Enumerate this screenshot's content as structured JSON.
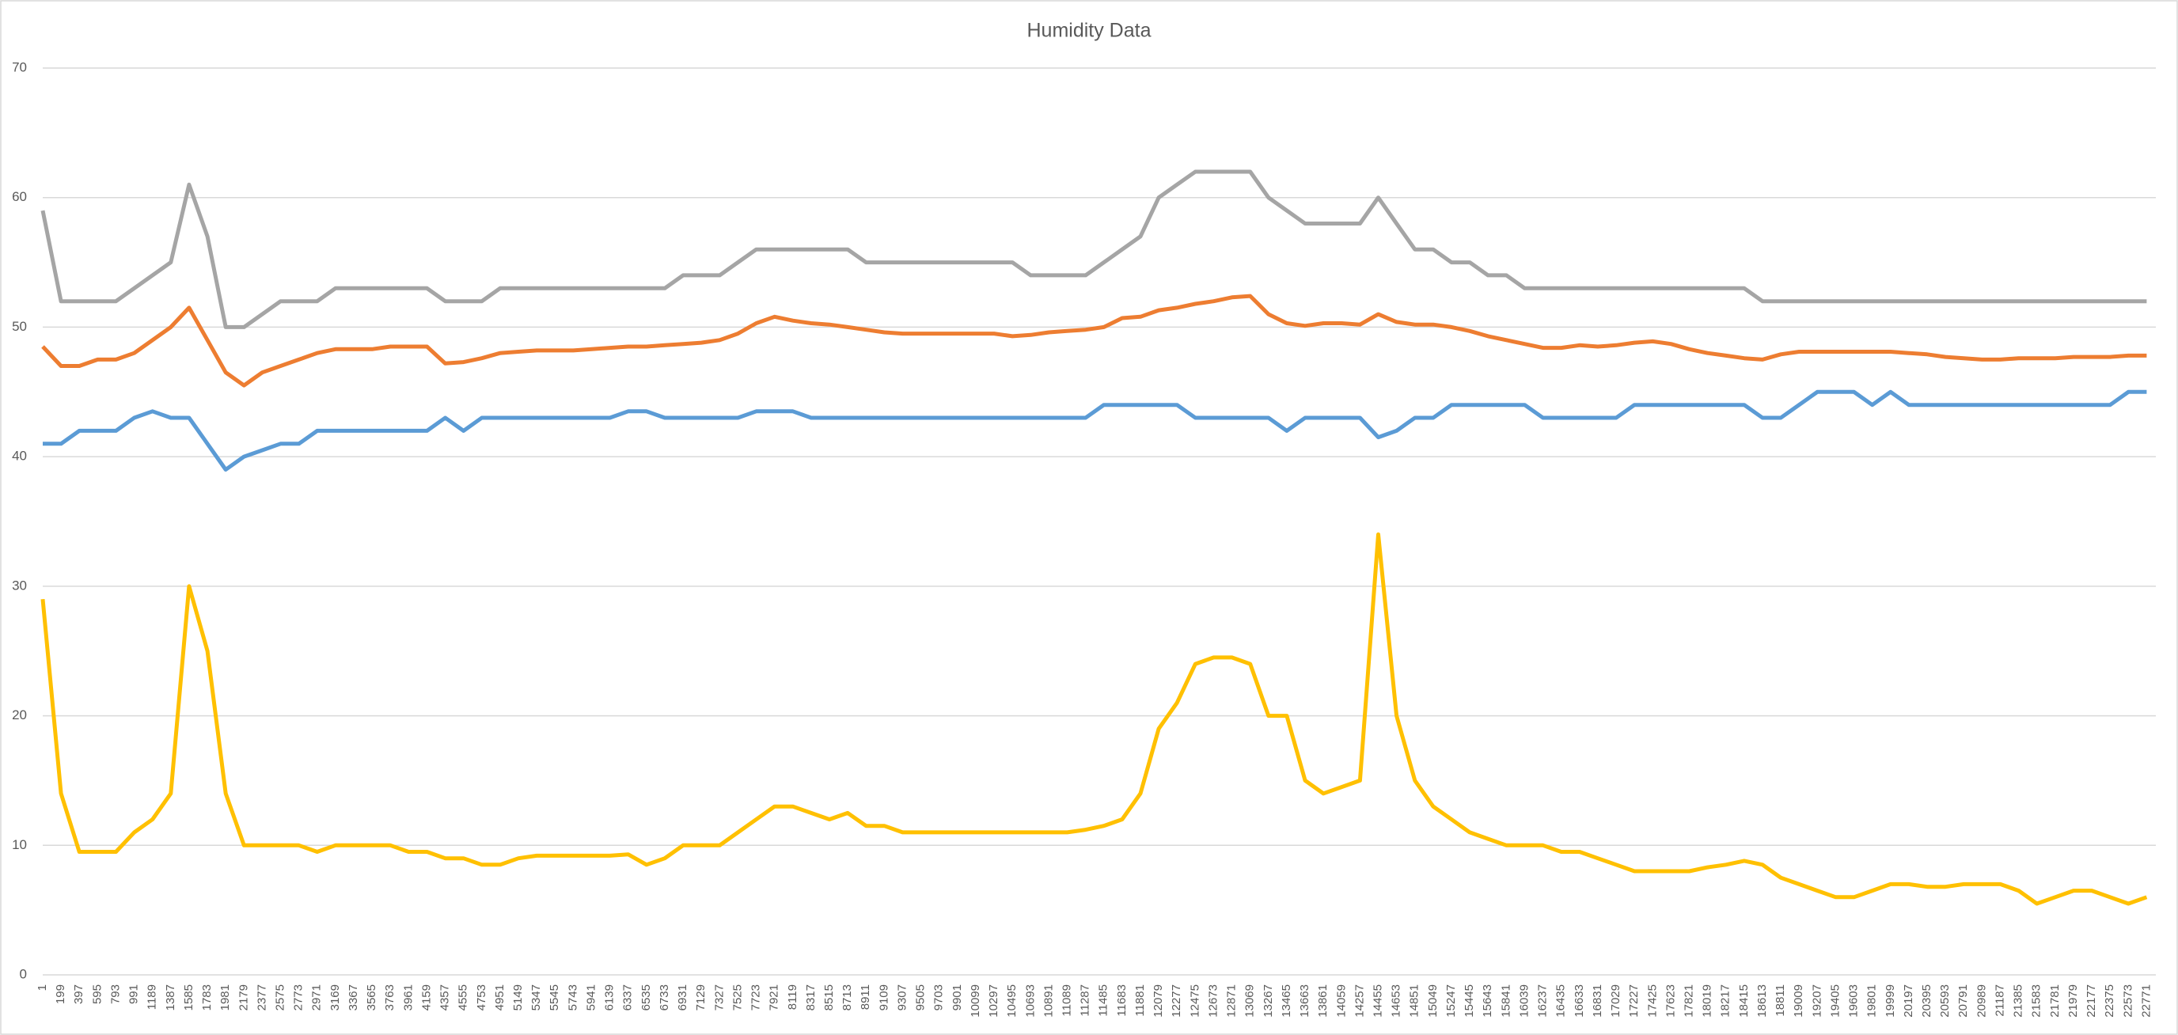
{
  "chart_data": {
    "type": "line",
    "title": "Humidity Data",
    "categories": [
      1,
      199,
      397,
      595,
      793,
      991,
      1189,
      1387,
      1585,
      1783,
      1981,
      2179,
      2377,
      2575,
      2773,
      2971,
      3169,
      3367,
      3565,
      3763,
      3961,
      4159,
      4357,
      4555,
      4753,
      4951,
      5149,
      5347,
      5545,
      5743,
      5941,
      6139,
      6337,
      6535,
      6733,
      6931,
      7129,
      7327,
      7525,
      7723,
      7921,
      8119,
      8317,
      8515,
      8713,
      8911,
      9109,
      9307,
      9505,
      9703,
      9901,
      10099,
      10297,
      10495,
      10693,
      10891,
      11089,
      11287,
      11485,
      11683,
      11881,
      12079,
      12277,
      12475,
      12673,
      12871,
      13069,
      13267,
      13465,
      13663,
      13861,
      14059,
      14257,
      14455,
      14653,
      14851,
      15049,
      15247,
      15445,
      15643,
      15841,
      16039,
      16237,
      16435,
      16633,
      16831,
      17029,
      17227,
      17425,
      17623,
      17821,
      18019,
      18217,
      18415,
      18613,
      18811,
      19009,
      19207,
      19405,
      19603,
      19801,
      19999,
      20197,
      20395,
      20593,
      20791,
      20989,
      21187,
      21385,
      21583,
      21781,
      21979,
      22177,
      22375,
      22573,
      22771
    ],
    "series": [
      {
        "color": "#a5a5a5",
        "values": [
          59,
          52,
          52,
          52,
          52,
          53,
          54,
          55,
          61,
          57,
          50,
          50,
          51,
          52,
          52,
          52,
          53,
          53,
          53,
          53,
          53,
          53,
          52,
          52,
          52,
          53,
          53,
          53,
          53,
          53,
          53,
          53,
          53,
          53,
          53,
          54,
          54,
          54,
          55,
          56,
          56,
          56,
          56,
          56,
          56,
          55,
          55,
          55,
          55,
          55,
          55,
          55,
          55,
          55,
          54,
          54,
          54,
          54,
          55,
          56,
          57,
          60,
          61,
          62,
          62,
          62,
          62,
          60,
          59,
          58,
          58,
          58,
          58,
          60,
          58,
          56,
          56,
          55,
          55,
          54,
          54,
          53,
          53,
          53,
          53,
          53,
          53,
          53,
          53,
          53,
          53,
          53,
          53,
          53,
          52,
          52,
          52,
          52,
          52,
          52,
          52,
          52,
          52,
          52,
          52,
          52,
          52,
          52,
          52,
          52,
          52,
          52,
          52,
          52,
          52,
          52
        ]
      },
      {
        "color": "#ed7d31",
        "values": [
          48.5,
          47,
          47,
          47.5,
          47.5,
          48,
          49,
          50,
          51.5,
          49,
          46.5,
          45.5,
          46.5,
          47,
          47.5,
          48,
          48.3,
          48.3,
          48.3,
          48.5,
          48.5,
          48.5,
          47.2,
          47.3,
          47.6,
          48,
          48.1,
          48.2,
          48.2,
          48.2,
          48.3,
          48.4,
          48.5,
          48.5,
          48.6,
          48.7,
          48.8,
          49,
          49.5,
          50.3,
          50.8,
          50.5,
          50.3,
          50.2,
          50,
          49.8,
          49.6,
          49.5,
          49.5,
          49.5,
          49.5,
          49.5,
          49.5,
          49.3,
          49.4,
          49.6,
          49.7,
          49.8,
          50,
          50.7,
          50.8,
          51.3,
          51.5,
          51.8,
          52,
          52.3,
          52.4,
          51,
          50.3,
          50.1,
          50.3,
          50.3,
          50.2,
          51,
          50.4,
          50.2,
          50.2,
          50,
          49.7,
          49.3,
          49,
          48.7,
          48.4,
          48.4,
          48.6,
          48.5,
          48.6,
          48.8,
          48.9,
          48.7,
          48.3,
          48,
          47.8,
          47.6,
          47.5,
          47.9,
          48.1,
          48.1,
          48.1,
          48.1,
          48.1,
          48.1,
          48,
          47.9,
          47.7,
          47.6,
          47.5,
          47.5,
          47.6,
          47.6,
          47.6,
          47.7,
          47.7,
          47.7,
          47.8,
          47.8
        ]
      },
      {
        "color": "#5b9bd5",
        "values": [
          41,
          41,
          42,
          42,
          42,
          43,
          43.5,
          43,
          43,
          41,
          39,
          40,
          40.5,
          41,
          41,
          42,
          42,
          42,
          42,
          42,
          42,
          42,
          43,
          42,
          43,
          43,
          43,
          43,
          43,
          43,
          43,
          43,
          43.5,
          43.5,
          43,
          43,
          43,
          43,
          43,
          43.5,
          43.5,
          43.5,
          43,
          43,
          43,
          43,
          43,
          43,
          43,
          43,
          43,
          43,
          43,
          43,
          43,
          43,
          43,
          43,
          44,
          44,
          44,
          44,
          44,
          43,
          43,
          43,
          43,
          43,
          42,
          43,
          43,
          43,
          43,
          41.5,
          42,
          43,
          43,
          44,
          44,
          44,
          44,
          44,
          43,
          43,
          43,
          43,
          43,
          44,
          44,
          44,
          44,
          44,
          44,
          44,
          43,
          43,
          44,
          45,
          45,
          45,
          44,
          45,
          44,
          44,
          44,
          44,
          44,
          44,
          44,
          44,
          44,
          44,
          44,
          44,
          45,
          45
        ]
      },
      {
        "color": "#ffc000",
        "values": [
          29,
          14,
          9.5,
          9.5,
          9.5,
          11,
          12,
          14,
          30,
          25,
          14,
          10,
          10,
          10,
          10,
          9.5,
          10,
          10,
          10,
          10,
          9.5,
          9.5,
          9,
          9,
          8.5,
          8.5,
          9,
          9.2,
          9.2,
          9.2,
          9.2,
          9.2,
          9.3,
          8.5,
          9,
          10,
          10,
          10,
          11,
          12,
          13,
          13,
          12.5,
          12,
          12.5,
          11.5,
          11.5,
          11,
          11,
          11,
          11,
          11,
          11,
          11,
          11,
          11,
          11,
          11.2,
          11.5,
          12,
          14,
          19,
          21,
          24,
          24.5,
          24.5,
          24,
          20,
          20,
          15,
          14,
          14.5,
          15,
          34,
          20,
          15,
          13,
          12,
          11,
          10.5,
          10,
          10,
          10,
          9.5,
          9.5,
          9,
          8.5,
          8,
          8,
          8,
          8,
          8.3,
          8.5,
          8.8,
          8.5,
          7.5,
          7,
          6.5,
          6,
          6,
          6.5,
          7,
          7,
          6.8,
          6.8,
          7,
          7,
          7,
          6.5,
          5.5,
          6,
          6.5,
          6.5,
          6,
          5.5,
          6
        ]
      }
    ],
    "ylim": [
      0,
      70
    ],
    "yticks": [
      0,
      10,
      20,
      30,
      40,
      50,
      60,
      70
    ],
    "grid": true
  }
}
